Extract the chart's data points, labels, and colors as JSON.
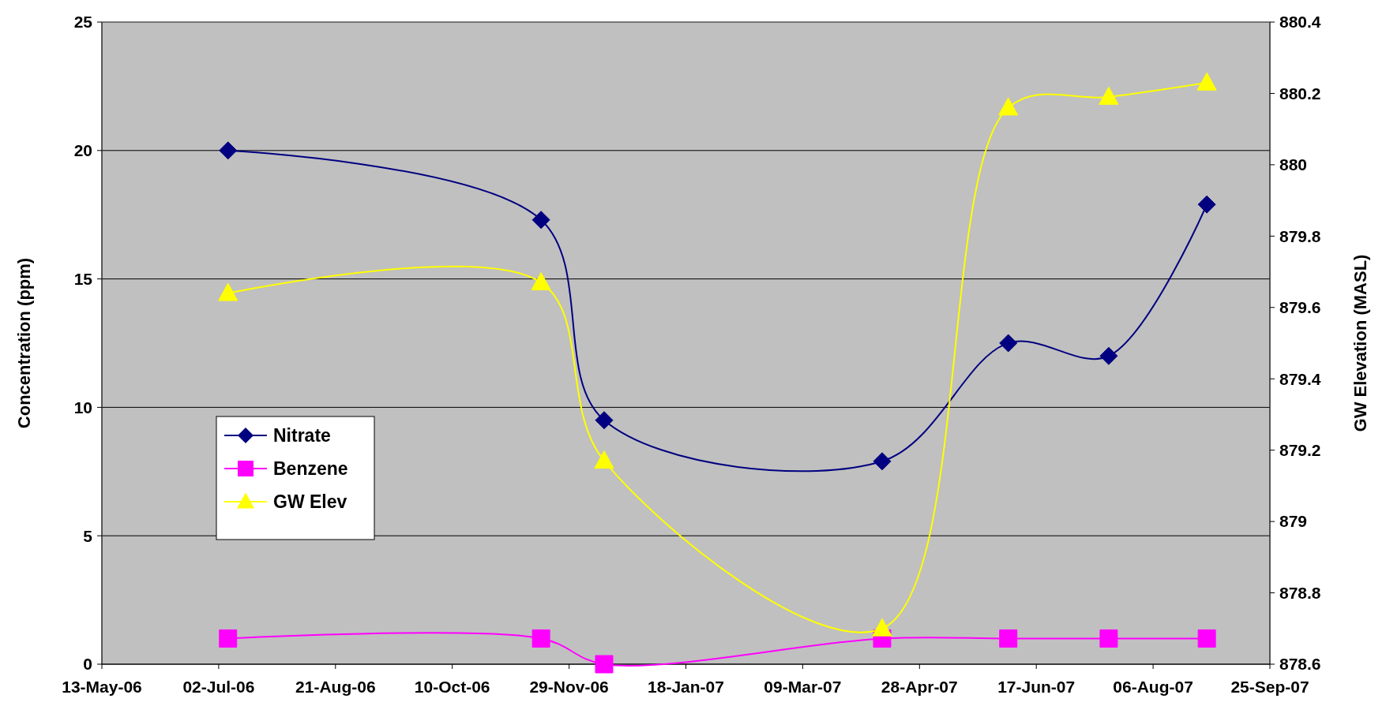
{
  "chart_data": {
    "type": "line",
    "ylabel": "Concentration (ppm)",
    "y2label": "GW Elevation (MASL)",
    "x": [
      "2006-07-06",
      "2006-11-17",
      "2006-12-14",
      "2007-04-12",
      "2007-06-05",
      "2007-07-18",
      "2007-08-29"
    ],
    "series": [
      {
        "name": "Nitrate",
        "color": "#000080",
        "marker": "diamond",
        "values": [
          20,
          17.3,
          9.5,
          7.9,
          12.5,
          12,
          17.9
        ]
      },
      {
        "name": "Benzene",
        "color": "#ff00ff",
        "marker": "square",
        "values": [
          1,
          1,
          0,
          1,
          1,
          1,
          1
        ]
      },
      {
        "name": "GW Elev",
        "color": "#ffff00",
        "marker": "triangle",
        "axis": "y2",
        "values": [
          879.64,
          879.67,
          879.17,
          878.7,
          880.16,
          880.19,
          880.23
        ]
      }
    ],
    "xlim": [
      "2006-05-13",
      "2007-09-25"
    ],
    "xticks": [
      {
        "value": "2006-05-13",
        "label": "13-May-06"
      },
      {
        "value": "2006-07-02",
        "label": "02-Jul-06"
      },
      {
        "value": "2006-08-21",
        "label": "21-Aug-06"
      },
      {
        "value": "2006-10-10",
        "label": "10-Oct-06"
      },
      {
        "value": "2006-11-29",
        "label": "29-Nov-06"
      },
      {
        "value": "2007-01-18",
        "label": "18-Jan-07"
      },
      {
        "value": "2007-03-09",
        "label": "09-Mar-07"
      },
      {
        "value": "2007-04-28",
        "label": "28-Apr-07"
      },
      {
        "value": "2007-06-17",
        "label": "17-Jun-07"
      },
      {
        "value": "2007-08-06",
        "label": "06-Aug-07"
      },
      {
        "value": "2007-09-25",
        "label": "25-Sep-07"
      }
    ],
    "ylim": [
      0,
      25
    ],
    "yticks": [
      0,
      5,
      10,
      15,
      20,
      25
    ],
    "y2lim": [
      878.6,
      880.4
    ],
    "y2ticks": [
      878.6,
      878.8,
      879,
      879.2,
      879.4,
      879.6,
      879.8,
      880,
      880.2,
      880.4
    ],
    "grid": "y",
    "legend": "left"
  }
}
